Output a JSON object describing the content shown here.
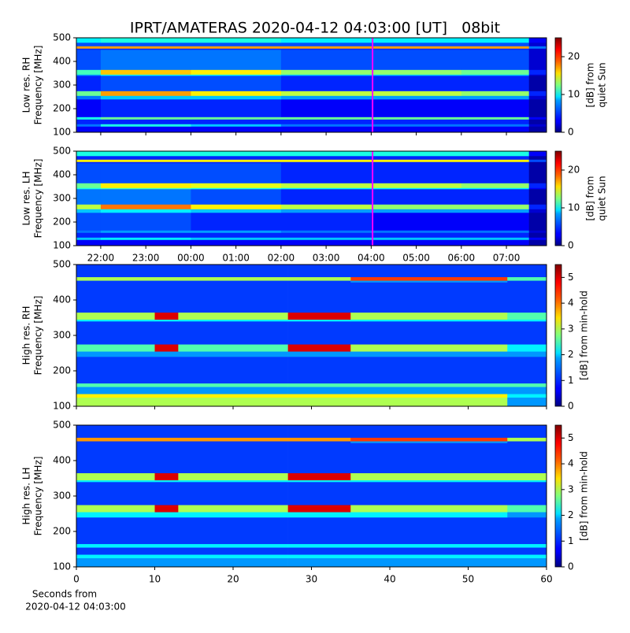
{
  "chart_data": [
    {
      "type": "heatmap",
      "title": "IPRT/AMATERAS 2020-04-12 04:03:00 [UT]   08bit",
      "ylabel": [
        "Low res. RH",
        "Frequency [MHz]"
      ],
      "colorbar_label": [
        "[dB] from",
        "quiet Sun"
      ],
      "xlim": [
        21.46,
        31.89
      ],
      "xticks": [
        22,
        23,
        24,
        25,
        26,
        27,
        28,
        29,
        30,
        31
      ],
      "ylim": [
        100,
        500
      ],
      "yticks": [
        100,
        200,
        300,
        400,
        500
      ],
      "clim": [
        0,
        25
      ],
      "cticks": [
        0,
        10,
        20
      ],
      "colormap": "jet",
      "vline": 28.03,
      "vline_color": "#ff00ff",
      "x_edges": [
        21.46,
        22,
        24,
        26,
        28,
        30,
        31.5,
        31.89
      ],
      "y_edges": [
        100,
        125,
        135,
        155,
        165,
        240,
        255,
        275,
        340,
        345,
        365,
        450,
        455,
        465,
        480,
        500
      ],
      "z": [
        [
          3,
          3,
          3,
          3,
          3,
          3,
          1
        ],
        [
          6,
          10,
          8,
          6,
          6,
          6,
          2
        ],
        [
          4,
          4,
          4,
          4,
          4,
          4,
          1
        ],
        [
          10,
          12,
          12,
          12,
          12,
          12,
          3
        ],
        [
          3,
          4,
          4,
          3,
          3,
          3,
          1
        ],
        [
          6,
          8,
          8,
          7,
          7,
          7,
          2
        ],
        [
          12,
          18,
          16,
          14,
          14,
          13,
          4
        ],
        [
          4,
          5,
          5,
          4,
          4,
          4,
          1
        ],
        [
          7,
          9,
          9,
          8,
          8,
          8,
          2
        ],
        [
          11,
          17,
          16,
          13,
          13,
          12,
          4
        ],
        [
          5,
          6,
          6,
          5,
          5,
          5,
          2
        ],
        [
          4,
          4,
          4,
          4,
          4,
          4,
          2
        ],
        [
          18,
          18,
          18,
          18,
          18,
          18,
          6
        ],
        [
          5,
          5,
          5,
          5,
          5,
          5,
          2
        ],
        [
          9,
          10,
          10,
          9,
          9,
          9,
          3
        ]
      ]
    },
    {
      "type": "heatmap",
      "ylabel": [
        "Low res. LH",
        "Frequency [MHz]"
      ],
      "colorbar_label": [
        "[dB] from",
        "quiet Sun"
      ],
      "xlim": [
        21.46,
        31.89
      ],
      "xticks": [
        {
          "value": 22,
          "label": "22:00"
        },
        {
          "value": 23,
          "label": "23:00"
        },
        {
          "value": 24,
          "label": "00:00"
        },
        {
          "value": 25,
          "label": "01:00"
        },
        {
          "value": 26,
          "label": "02:00"
        },
        {
          "value": 27,
          "label": "03:00"
        },
        {
          "value": 28,
          "label": "04:00"
        },
        {
          "value": 29,
          "label": "05:00"
        },
        {
          "value": 30,
          "label": "06:00"
        },
        {
          "value": 31,
          "label": "07:00"
        }
      ],
      "ylim": [
        100,
        500
      ],
      "yticks": [
        100,
        200,
        300,
        400,
        500
      ],
      "clim": [
        0,
        25
      ],
      "cticks": [
        0,
        10,
        20
      ],
      "colormap": "jet",
      "vline": 28.03,
      "vline_color": "#ff00ff",
      "x_edges": [
        21.46,
        22,
        24,
        26,
        28,
        30,
        31.5,
        31.89
      ],
      "y_edges": [
        100,
        125,
        135,
        155,
        165,
        240,
        255,
        275,
        340,
        345,
        365,
        450,
        455,
        465,
        480,
        500
      ],
      "z": [
        [
          3,
          3,
          3,
          3,
          3,
          3,
          1
        ],
        [
          8,
          9,
          8,
          8,
          8,
          8,
          3
        ],
        [
          4,
          4,
          4,
          4,
          4,
          4,
          1
        ],
        [
          6,
          7,
          7,
          6,
          6,
          6,
          2
        ],
        [
          5,
          5,
          4,
          4,
          3,
          3,
          1
        ],
        [
          8,
          9,
          8,
          7,
          7,
          7,
          2
        ],
        [
          14,
          19,
          16,
          14,
          13,
          13,
          4
        ],
        [
          6,
          6,
          5,
          4,
          4,
          4,
          1
        ],
        [
          10,
          11,
          10,
          9,
          9,
          9,
          3
        ],
        [
          12,
          16,
          15,
          14,
          14,
          13,
          4
        ],
        [
          5,
          5,
          5,
          4,
          4,
          4,
          1
        ],
        [
          4,
          4,
          4,
          4,
          4,
          4,
          1
        ],
        [
          16,
          16,
          16,
          16,
          16,
          16,
          5
        ],
        [
          4,
          4,
          4,
          4,
          4,
          4,
          1
        ],
        [
          10,
          10,
          10,
          10,
          10,
          10,
          3
        ]
      ]
    },
    {
      "type": "heatmap",
      "ylabel": [
        "High res. RH",
        "Frequency [MHz]"
      ],
      "colorbar_label": [
        "[dB] from min-hold"
      ],
      "xlim": [
        0,
        60
      ],
      "xticks": [
        0,
        10,
        20,
        30,
        40,
        50,
        60
      ],
      "ylim": [
        100,
        500
      ],
      "yticks": [
        100,
        200,
        300,
        400,
        500
      ],
      "clim": [
        0,
        5.5
      ],
      "cticks": [
        0,
        1,
        2,
        3,
        4,
        5
      ],
      "colormap": "jet",
      "x_edges": [
        0,
        10,
        13,
        27,
        35,
        55,
        60
      ],
      "y_edges": [
        100,
        125,
        135,
        155,
        165,
        240,
        255,
        275,
        340,
        345,
        365,
        450,
        455,
        465,
        480,
        500
      ],
      "z": [
        [
          3,
          3,
          3,
          3,
          3,
          1.5
        ],
        [
          3.5,
          3.5,
          3.5,
          3.5,
          3.5,
          2
        ],
        [
          1.5,
          1.5,
          1.5,
          1.5,
          1.5,
          1.5
        ],
        [
          2.5,
          2.5,
          2.5,
          2.5,
          2.5,
          2.5
        ],
        [
          1,
          1,
          1,
          1,
          1,
          1
        ],
        [
          1.5,
          1.5,
          1.5,
          1.5,
          1.5,
          1.5
        ],
        [
          2.5,
          5,
          2.5,
          5,
          3,
          2
        ],
        [
          1,
          1,
          1,
          1,
          1,
          1
        ],
        [
          2,
          2,
          2,
          2,
          2,
          2
        ],
        [
          3,
          5,
          3,
          5,
          3,
          2.5
        ],
        [
          1,
          1,
          1,
          1,
          1,
          1
        ],
        [
          1,
          1,
          1,
          1,
          1.5,
          1
        ],
        [
          3,
          3,
          3,
          3,
          4.5,
          2.5
        ],
        [
          1,
          1,
          1,
          1,
          1,
          1
        ],
        [
          1,
          1,
          1,
          1,
          1,
          1
        ]
      ]
    },
    {
      "type": "heatmap",
      "ylabel": [
        "High res. LH",
        "Frequency [MHz]"
      ],
      "colorbar_label": [
        "[dB] from min-hold"
      ],
      "xlabel": [
        "Seconds from",
        "2020-04-12 04:03:00"
      ],
      "xlim": [
        0,
        60
      ],
      "xticks": [
        0,
        10,
        20,
        30,
        40,
        50,
        60
      ],
      "ylim": [
        100,
        500
      ],
      "yticks": [
        100,
        200,
        300,
        400,
        500
      ],
      "clim": [
        0,
        5.5
      ],
      "cticks": [
        0,
        1,
        2,
        3,
        4,
        5
      ],
      "colormap": "jet",
      "x_edges": [
        0,
        10,
        13,
        27,
        35,
        55,
        60
      ],
      "y_edges": [
        100,
        125,
        135,
        155,
        165,
        240,
        255,
        275,
        340,
        345,
        365,
        450,
        455,
        465,
        480,
        500
      ],
      "z": [
        [
          1.5,
          1.5,
          1.5,
          1.5,
          1.5,
          1.5
        ],
        [
          2,
          2,
          2,
          2,
          2,
          2
        ],
        [
          1,
          1,
          1,
          1,
          1,
          1
        ],
        [
          2,
          2,
          2,
          2,
          2,
          2
        ],
        [
          1,
          1,
          1,
          1,
          1,
          1
        ],
        [
          2,
          2,
          2,
          2,
          2,
          1.5
        ],
        [
          3,
          5,
          3,
          5,
          3,
          2.5
        ],
        [
          1,
          1,
          1,
          1,
          1,
          1
        ],
        [
          2,
          2,
          2,
          2,
          2,
          2
        ],
        [
          3,
          5,
          3,
          5,
          3,
          3
        ],
        [
          1,
          1,
          1,
          1,
          1,
          1
        ],
        [
          1,
          1,
          1,
          1,
          1.5,
          1
        ],
        [
          4,
          4,
          4,
          4,
          4.5,
          3
        ],
        [
          1,
          1,
          1,
          1,
          1,
          1
        ],
        [
          1,
          1,
          1,
          1,
          1,
          1
        ]
      ]
    }
  ]
}
